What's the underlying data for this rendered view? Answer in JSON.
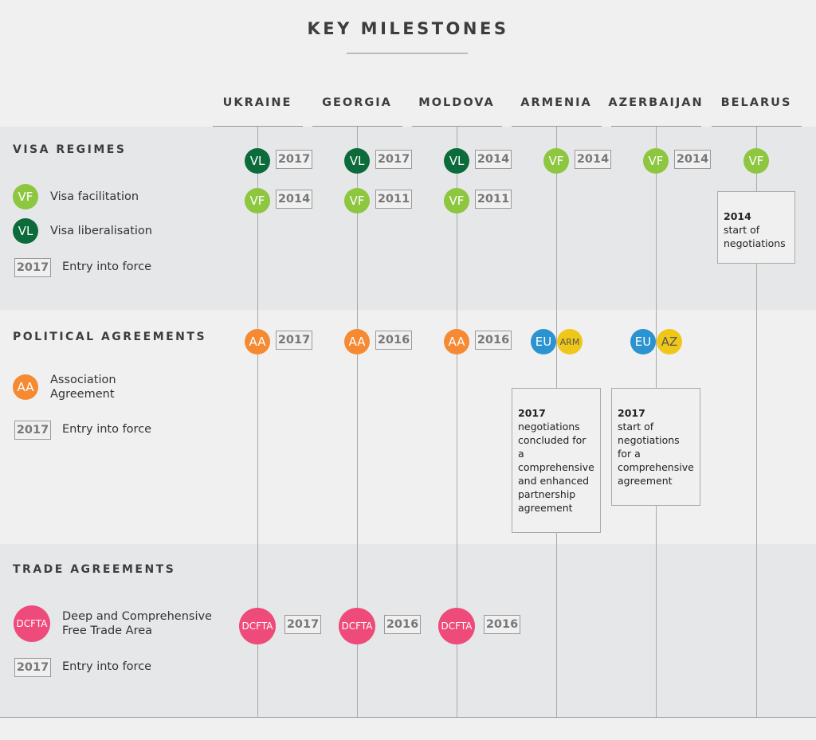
{
  "title": "KEY MILESTONES",
  "countries": [
    "UKRAINE",
    "GEORGIA",
    "MOLDOVA",
    "ARMENIA",
    "AZERBAIJAN",
    "BELARUS"
  ],
  "badge_colors": {
    "VF": "#8dc63f",
    "VL": "#0b6b3a",
    "AA": "#f58a33",
    "EU": "#2a93d0",
    "ARM": "#efc719",
    "AZ": "#efc719",
    "DCFTA": "#ee4a7a"
  },
  "sections": [
    {
      "title": "VISA REGIMES",
      "legend": [
        {
          "badge": "VF",
          "label": "Visa facilitation"
        },
        {
          "badge": "VL",
          "label": "Visa liberalisation"
        },
        {
          "year": "2017",
          "label": "Entry into force"
        }
      ],
      "columns": [
        [
          {
            "badges": [
              "VL"
            ],
            "year": "2017"
          },
          {
            "badges": [
              "VF"
            ],
            "year": "2014"
          }
        ],
        [
          {
            "badges": [
              "VL"
            ],
            "year": "2017"
          },
          {
            "badges": [
              "VF"
            ],
            "year": "2011"
          }
        ],
        [
          {
            "badges": [
              "VL"
            ],
            "year": "2014"
          },
          {
            "badges": [
              "VF"
            ],
            "year": "2011"
          }
        ],
        [
          {
            "badges": [
              "VF"
            ],
            "year": "2014"
          }
        ],
        [
          {
            "badges": [
              "VF"
            ],
            "year": "2014"
          }
        ],
        [
          {
            "badges": [
              "VF"
            ]
          }
        ]
      ],
      "notes": [
        null,
        null,
        null,
        null,
        null,
        {
          "year": "2014",
          "text": "start of negotiations"
        }
      ]
    },
    {
      "title": "POLITICAL AGREEMENTS",
      "legend": [
        {
          "badge": "AA",
          "label": "Association Agreement"
        },
        {
          "year": "2017",
          "label": "Entry into force"
        }
      ],
      "columns": [
        [
          {
            "badges": [
              "AA"
            ],
            "year": "2017"
          }
        ],
        [
          {
            "badges": [
              "AA"
            ],
            "year": "2016"
          }
        ],
        [
          {
            "badges": [
              "AA"
            ],
            "year": "2016"
          }
        ],
        [
          {
            "badges": [
              "EU",
              "ARM"
            ]
          }
        ],
        [
          {
            "badges": [
              "EU",
              "AZ"
            ]
          }
        ],
        []
      ],
      "notes": [
        null,
        null,
        null,
        {
          "year": "2017",
          "text": "negotiations concluded for a comprehensive and enhanced partnership agreement"
        },
        {
          "year": "2017",
          "text": "start of negotiations for a comprehensive agreement"
        },
        null
      ]
    },
    {
      "title": "TRADE AGREEMENTS",
      "legend": [
        {
          "badge": "DCFTA",
          "label": "Deep and Comprehensive Free Trade Area"
        },
        {
          "year": "2017",
          "label": "Entry into force"
        }
      ],
      "columns": [
        [
          {
            "badges": [
              "DCFTA"
            ],
            "year": "2017"
          }
        ],
        [
          {
            "badges": [
              "DCFTA"
            ],
            "year": "2016"
          }
        ],
        [
          {
            "badges": [
              "DCFTA"
            ],
            "year": "2016"
          }
        ],
        [],
        [],
        []
      ],
      "notes": [
        null,
        null,
        null,
        null,
        null,
        null
      ]
    }
  ]
}
